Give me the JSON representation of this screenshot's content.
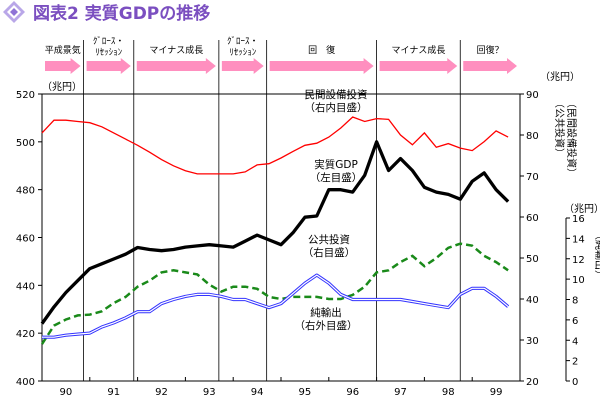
{
  "title": "図表2 実質GDPの推移",
  "colors": {
    "title": "#7b4fc0",
    "arrow": "#ff8fbf",
    "private_investment": "#ff0000",
    "real_gdp": "#000000",
    "public_investment": "#1a8a1a",
    "net_exports": "#3333ff"
  },
  "phases": [
    {
      "label": "平成景気",
      "x0": 0,
      "x1": 0.87
    },
    {
      "label": "ｸﾞﾛｰｽ・\nﾘｾｯｼｮﾝ",
      "x0": 0.87,
      "x1": 1.92
    },
    {
      "label": "マイナス成長",
      "x0": 1.92,
      "x1": 3.7
    },
    {
      "label": "ｸﾞﾛｰｽ・\nﾘｾｯｼｮﾝ",
      "x0": 3.7,
      "x1": 4.7
    },
    {
      "label": "回　復",
      "x0": 4.7,
      "x1": 7.0
    },
    {
      "label": "マイナス成長",
      "x0": 7.0,
      "x1": 8.75
    },
    {
      "label": "回復？",
      "x0": 8.75,
      "x1": 10.0
    }
  ],
  "chart_data": {
    "type": "line",
    "x_range": [
      1990,
      2000
    ],
    "x_ticks": [
      "90",
      "91",
      "92",
      "93",
      "94",
      "95",
      "96",
      "97",
      "98",
      "99"
    ],
    "left_axis": {
      "unit": "（兆円）",
      "range": [
        400,
        520
      ],
      "ticks": [
        "400",
        "420",
        "440",
        "460",
        "480",
        "500",
        "520"
      ]
    },
    "right_axis": {
      "unit": "（兆円）",
      "range": [
        20,
        90
      ],
      "ticks": [
        "20",
        "30",
        "40",
        "50",
        "60",
        "70",
        "80",
        "90"
      ],
      "label": "（公共投資）\n（民間設備投資）"
    },
    "right_axis2": {
      "unit": "（兆円）",
      "range": [
        0,
        16
      ],
      "ticks": [
        "0",
        "2",
        "4",
        "6",
        "8",
        "10",
        "12",
        "14",
        "16"
      ],
      "label": "（純輸出）"
    },
    "series": [
      {
        "key": "private_investment",
        "name": "民間設備投資",
        "axis_note": "（右内目盛）",
        "axis": "right",
        "x": [
          1990.0,
          1990.25,
          1990.5,
          1990.75,
          1991.0,
          1991.25,
          1991.5,
          1991.75,
          1992.0,
          1992.25,
          1992.5,
          1992.75,
          1993.0,
          1993.25,
          1993.5,
          1993.75,
          1994.0,
          1994.25,
          1994.5,
          1994.75,
          1995.0,
          1995.25,
          1995.5,
          1995.75,
          1996.0,
          1996.25,
          1996.5,
          1996.75,
          1997.0,
          1997.25,
          1997.5,
          1997.75,
          1998.0,
          1998.25,
          1998.5,
          1998.75,
          1999.0,
          1999.25,
          1999.5,
          1999.75
        ],
        "y": [
          80.5,
          83.6,
          83.6,
          83.3,
          83.0,
          82.0,
          80.5,
          79.0,
          77.5,
          75.8,
          74.0,
          72.5,
          71.3,
          70.5,
          70.5,
          70.5,
          70.5,
          71.0,
          72.7,
          73.0,
          74.4,
          76.0,
          77.5,
          78.0,
          79.5,
          81.7,
          84.4,
          83.3,
          84.0,
          83.8,
          80.0,
          77.6,
          80.5,
          77.0,
          77.9,
          76.8,
          76.2,
          78.4,
          81.0,
          79.5
        ]
      },
      {
        "key": "real_gdp",
        "name": "実質GDP",
        "axis_note": "（左目盛）",
        "axis": "left",
        "x": [
          1990.0,
          1990.25,
          1990.5,
          1990.75,
          1991.0,
          1991.25,
          1991.5,
          1991.75,
          1992.0,
          1992.25,
          1992.5,
          1992.75,
          1993.0,
          1993.25,
          1993.5,
          1993.75,
          1994.0,
          1994.25,
          1994.5,
          1994.75,
          1995.0,
          1995.25,
          1995.5,
          1995.75,
          1996.0,
          1996.25,
          1996.5,
          1996.75,
          1997.0,
          1997.25,
          1997.5,
          1997.75,
          1998.0,
          1998.25,
          1998.5,
          1998.75,
          1999.0,
          1999.25,
          1999.5,
          1999.75
        ],
        "y": [
          424.0,
          431.0,
          437.0,
          442.0,
          447.0,
          449.0,
          451.0,
          453.0,
          455.8,
          455.0,
          454.5,
          455.0,
          456.0,
          456.5,
          457.0,
          456.5,
          456.0,
          458.5,
          461.0,
          459.0,
          457.0,
          462.0,
          468.5,
          469.0,
          480.0,
          480.0,
          479.0,
          486.0,
          500.0,
          488.0,
          493.0,
          488.0,
          481.0,
          479.0,
          478.0,
          476.0,
          483.5,
          487.0,
          480.0,
          475.0
        ]
      },
      {
        "key": "public_investment",
        "name": "公共投資",
        "axis_note": "（右目盛）",
        "axis": "right",
        "x": [
          1990.0,
          1990.25,
          1990.5,
          1990.75,
          1991.0,
          1991.25,
          1991.5,
          1991.75,
          1992.0,
          1992.25,
          1992.5,
          1992.75,
          1993.0,
          1993.25,
          1993.5,
          1993.75,
          1994.0,
          1994.25,
          1994.5,
          1994.75,
          1995.0,
          1995.25,
          1995.5,
          1995.75,
          1996.0,
          1996.25,
          1996.5,
          1996.75,
          1997.0,
          1997.25,
          1997.5,
          1997.75,
          1998.0,
          1998.25,
          1998.5,
          1998.75,
          1999.0,
          1999.25,
          1999.5,
          1999.75
        ],
        "y": [
          29.0,
          33.5,
          35.0,
          36.0,
          36.2,
          37.0,
          39.0,
          40.5,
          43.0,
          44.5,
          46.5,
          47.0,
          46.5,
          46.0,
          43.5,
          41.8,
          43.0,
          43.0,
          42.5,
          40.5,
          40.0,
          40.5,
          40.5,
          40.5,
          40.0,
          40.0,
          41.0,
          43.0,
          46.5,
          47.0,
          49.0,
          50.5,
          48.0,
          50.0,
          52.5,
          53.5,
          53.0,
          50.5,
          49.0,
          47.0
        ]
      },
      {
        "key": "net_exports",
        "name": "純輸出",
        "axis_note": "（右外目盛）",
        "axis": "right2",
        "x": [
          1990.0,
          1990.25,
          1990.5,
          1990.75,
          1991.0,
          1991.25,
          1991.5,
          1991.75,
          1992.0,
          1992.25,
          1992.5,
          1992.75,
          1993.0,
          1993.25,
          1993.5,
          1993.75,
          1994.0,
          1994.25,
          1994.5,
          1994.75,
          1995.0,
          1995.25,
          1995.5,
          1995.75,
          1996.0,
          1996.25,
          1996.5,
          1996.75,
          1997.0,
          1997.25,
          1997.5,
          1997.75,
          1998.0,
          1998.25,
          1998.5,
          1998.75,
          1999.0,
          1999.25,
          1999.5,
          1999.75
        ],
        "y": [
          4.3,
          4.3,
          4.5,
          4.6,
          4.7,
          5.3,
          5.7,
          6.2,
          6.8,
          6.8,
          7.6,
          8.0,
          8.3,
          8.5,
          8.5,
          8.3,
          8.0,
          8.0,
          7.6,
          7.2,
          7.6,
          8.6,
          9.6,
          10.4,
          9.6,
          8.5,
          8.0,
          8.0,
          8.0,
          8.0,
          8.0,
          7.8,
          7.6,
          7.4,
          7.2,
          8.5,
          9.1,
          9.1,
          8.3,
          7.3
        ]
      }
    ],
    "labels": [
      {
        "key": "private_investment",
        "text": "民間設備投資\n（右内目盛）"
      },
      {
        "key": "real_gdp",
        "text": "実質GDP\n（左目盛）"
      },
      {
        "key": "public_investment",
        "text": "公共投資\n（右目盛）"
      },
      {
        "key": "net_exports",
        "text": "純輸出\n（右外目盛）"
      }
    ]
  }
}
